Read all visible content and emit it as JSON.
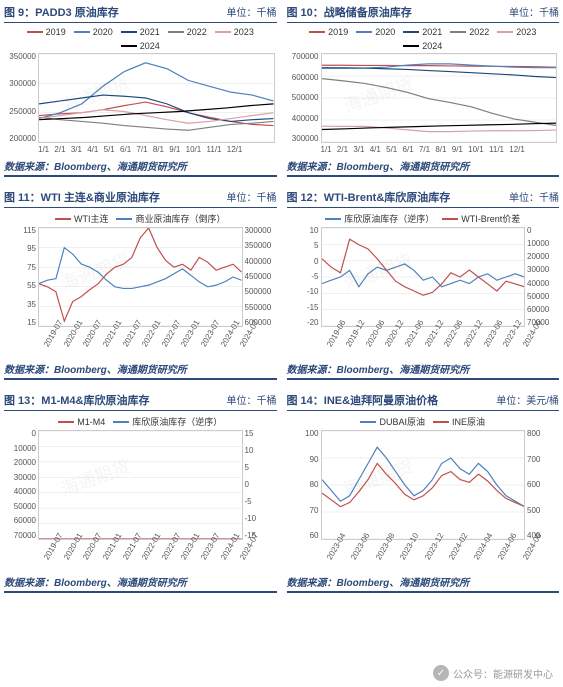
{
  "source_text": "数据来源：Bloomberg、海通期货研究所",
  "watermark": "海通期货",
  "footer_badge": "公众号：能源研发中心",
  "charts": [
    {
      "id": "c9",
      "fig_label": "图 9：",
      "title": "PADD3 原油库存",
      "unit": "单位：千桶",
      "legend_style": "year",
      "series_colors": {
        "2019": "#c0504d",
        "2020": "#4f81bd",
        "2021": "#1f497d",
        "2022": "#7f7f7f",
        "2023": "#d9a0a5",
        "2024": "#000000"
      },
      "yaxis": {
        "ticks": [
          350000,
          300000,
          250000,
          200000
        ]
      },
      "xaxis": {
        "labels": [
          "1/1",
          "2/1",
          "3/1",
          "4/1",
          "5/1",
          "6/1",
          "7/1",
          "8/1",
          "9/1",
          "10/1",
          "11/1",
          "12/1"
        ]
      },
      "data": {
        "2019": [
          245000,
          248000,
          250000,
          255000,
          262000,
          268000,
          260000,
          250000,
          242000,
          235000,
          230000,
          228000
        ],
        "2020": [
          240000,
          250000,
          265000,
          295000,
          320000,
          335000,
          325000,
          305000,
          295000,
          285000,
          280000,
          270000
        ],
        "2021": [
          265000,
          270000,
          275000,
          280000,
          278000,
          275000,
          265000,
          250000,
          240000,
          235000,
          238000,
          240000
        ],
        "2022": [
          242000,
          238000,
          235000,
          232000,
          228000,
          225000,
          222000,
          220000,
          225000,
          230000,
          232000,
          235000
        ],
        "2023": [
          240000,
          245000,
          250000,
          255000,
          252000,
          245000,
          238000,
          232000,
          235000,
          240000,
          245000,
          250000
        ],
        "2024": [
          238000,
          240000,
          242000,
          245000,
          248000,
          250000,
          252000,
          255000,
          258000,
          262000,
          265000
        ]
      }
    },
    {
      "id": "c10",
      "fig_label": "图 10：",
      "title": "战略储备原油库存",
      "unit": "单位：千桶",
      "legend_style": "year",
      "series_colors": {
        "2019": "#c0504d",
        "2020": "#4f81bd",
        "2021": "#1f497d",
        "2022": "#7f7f7f",
        "2023": "#d9a0a5",
        "2024": "#000000"
      },
      "yaxis": {
        "ticks": [
          700000,
          600000,
          500000,
          400000,
          300000
        ]
      },
      "xaxis": {
        "labels": [
          "1/1",
          "2/1",
          "3/1",
          "4/1",
          "5/1",
          "6/1",
          "7/1",
          "8/1",
          "9/1",
          "10/1",
          "11/1",
          "12/1"
        ]
      },
      "data": {
        "2019": [
          649000,
          649000,
          648000,
          648000,
          647000,
          647000,
          646000,
          645000,
          644000,
          643000,
          642000,
          640000
        ],
        "2020": [
          635000,
          635000,
          636000,
          640000,
          650000,
          655000,
          655000,
          650000,
          645000,
          640000,
          638000,
          638000
        ],
        "2021": [
          638000,
          637000,
          636000,
          633000,
          630000,
          625000,
          620000,
          615000,
          610000,
          605000,
          598000,
          593000
        ],
        "2022": [
          588000,
          578000,
          566000,
          548000,
          526000,
          497000,
          480000,
          460000,
          430000,
          405000,
          390000,
          375000
        ],
        "2023": [
          372000,
          371000,
          371000,
          364000,
          355000,
          347000,
          347000,
          350000,
          351000,
          351000,
          352000,
          354000
        ],
        "2024": [
          357000,
          360000,
          364000,
          367000,
          370000,
          373000,
          375000,
          378000,
          380000,
          383000,
          386000
        ]
      }
    },
    {
      "id": "c11",
      "fig_label": "图 11：",
      "title": "WTI 主连&商业原油库存",
      "unit": "单位：千桶",
      "legend_labels": [
        "WTI主连",
        "商业原油库存（倒序）"
      ],
      "legend_colors": [
        "#c0504d",
        "#4f81bd"
      ],
      "yaxis_left": {
        "ticks": [
          115.0,
          95.0,
          75.0,
          55.0,
          35.0,
          15.0
        ]
      },
      "yaxis_right": {
        "ticks": [
          300000,
          350000,
          400000,
          450000,
          500000,
          550000,
          600000
        ]
      },
      "xaxis": {
        "labels": [
          "2019-07",
          "2020-01",
          "2020-07",
          "2021-01",
          "2021-07",
          "2022-01",
          "2022-07",
          "2023-01",
          "2023-07",
          "2024-01",
          "2024-07"
        ]
      },
      "data": {
        "wti": [
          58,
          55,
          50,
          20,
          40,
          45,
          52,
          58,
          68,
          75,
          78,
          85,
          105,
          115,
          95,
          82,
          75,
          78,
          72,
          85,
          80,
          72,
          75,
          78,
          70
        ],
        "inv_rev": [
          430000,
          440000,
          445000,
          540000,
          520000,
          490000,
          480000,
          465000,
          440000,
          420000,
          415000,
          415000,
          420000,
          425000,
          435000,
          445000,
          460000,
          475000,
          455000,
          435000,
          420000,
          425000,
          435000,
          450000,
          440000
        ]
      }
    },
    {
      "id": "c12",
      "fig_label": "图 12：",
      "title": "WTI-Brent&库欣原油库存",
      "unit": "单位：千桶",
      "legend_labels": [
        "库欣原油库存（逆序）",
        "WTI-Brent价差"
      ],
      "legend_colors": [
        "#4f81bd",
        "#c0504d"
      ],
      "yaxis_left": {
        "ticks": [
          10,
          5,
          0,
          -5,
          -10,
          -15,
          -20
        ]
      },
      "yaxis_right": {
        "ticks": [
          0,
          10000,
          20000,
          30000,
          40000,
          50000,
          60000,
          70000
        ]
      },
      "xaxis": {
        "labels": [
          "2019-06",
          "2019-12",
          "2020-06",
          "2020-12",
          "2021-06",
          "2021-12",
          "2022-06",
          "2022-12",
          "2023-06",
          "2023-12",
          "2024-06"
        ]
      },
      "data": {
        "spread": [
          -7,
          -6,
          -5,
          -3,
          -8,
          -4,
          -2,
          -3,
          -2,
          -1,
          -3,
          -6,
          -5,
          -8,
          -7,
          -6,
          -7,
          -5,
          -4,
          -6,
          -5,
          -4,
          -5
        ],
        "cushing_rev": [
          48000,
          42000,
          38000,
          62000,
          58000,
          55000,
          48000,
          40000,
          32000,
          28000,
          25000,
          22000,
          24000,
          30000,
          38000,
          35000,
          40000,
          35000,
          30000,
          25000,
          32000,
          30000,
          28000
        ]
      }
    },
    {
      "id": "c13",
      "fig_label": "图 13：",
      "title": "M1-M4&库欣原油库存",
      "unit": "单位：千桶",
      "legend_labels": [
        "M1-M4",
        "库欣原油库存（逆序）"
      ],
      "legend_colors": [
        "#c0504d",
        "#4f81bd"
      ],
      "yaxis_left": {
        "ticks": [
          0,
          10000,
          20000,
          30000,
          40000,
          50000,
          60000,
          70000
        ]
      },
      "yaxis_right": {
        "ticks": [
          15,
          10,
          5,
          0,
          -5,
          -10,
          -15
        ]
      },
      "xaxis": {
        "labels": [
          "2019-07",
          "2020-01",
          "2020-07",
          "2021-01",
          "2021-07",
          "2022-01",
          "2022-07",
          "2023-01",
          "2023-07",
          "2024-01",
          "2024-07"
        ]
      },
      "data": {
        "m1m4": [
          0,
          -1,
          1,
          -12,
          -8,
          -3,
          -1,
          1,
          3,
          4,
          5,
          7,
          10,
          12,
          6,
          4,
          3,
          2,
          4,
          3,
          5,
          2,
          1,
          3,
          2
        ],
        "cushing_rev": [
          42000,
          38000,
          35000,
          65000,
          60000,
          55000,
          50000,
          42000,
          35000,
          30000,
          27000,
          25000,
          22000,
          24000,
          28000,
          35000,
          40000,
          38000,
          35000,
          30000,
          26000,
          32000,
          30000,
          28000,
          27000
        ]
      }
    },
    {
      "id": "c14",
      "fig_label": "图 14：",
      "title": "INE&迪拜阿曼原油价格",
      "unit": "单位：美元/桶",
      "legend_labels": [
        "DUBAI原油",
        "INE原油"
      ],
      "legend_colors": [
        "#4f81bd",
        "#c0504d"
      ],
      "yaxis_left": {
        "ticks": [
          100,
          90,
          80,
          70,
          60
        ]
      },
      "yaxis_right": {
        "ticks": [
          800,
          700,
          600,
          500,
          400
        ]
      },
      "xaxis": {
        "labels": [
          "2023-04",
          "2023-06",
          "2023-08",
          "2023-10",
          "2023-12",
          "2024-02",
          "2024-04",
          "2024-06",
          "2024-08"
        ]
      },
      "data": {
        "dubai": [
          82,
          78,
          74,
          76,
          82,
          88,
          94,
          90,
          85,
          80,
          76,
          78,
          82,
          88,
          90,
          86,
          84,
          88,
          85,
          80,
          76,
          74,
          72
        ],
        "ine": [
          570,
          545,
          520,
          535,
          575,
          620,
          680,
          640,
          605,
          565,
          545,
          560,
          590,
          635,
          650,
          620,
          610,
          640,
          615,
          580,
          550,
          535,
          520
        ]
      }
    }
  ]
}
